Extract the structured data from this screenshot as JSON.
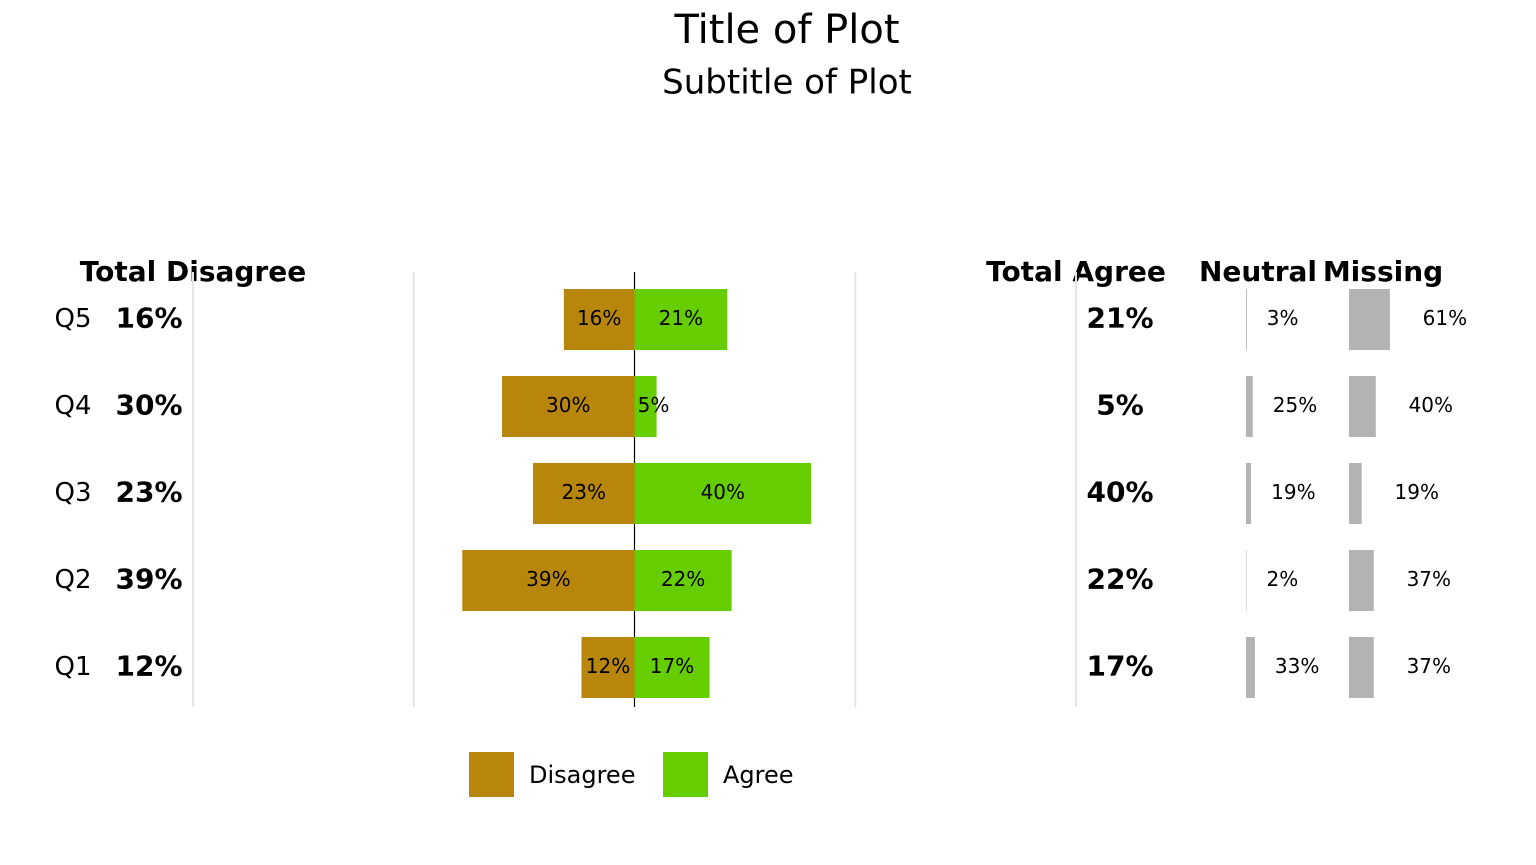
{
  "chart_data": {
    "type": "diverging_bar",
    "title": "Title of Plot",
    "subtitle": "Subtitle of Plot",
    "categories": [
      "Q5",
      "Q4",
      "Q3",
      "Q2",
      "Q1"
    ],
    "series": [
      {
        "name": "Disagree",
        "color": "#b8860b",
        "values": [
          16,
          30,
          23,
          39,
          12
        ],
        "value_labels": [
          "16%",
          "30%",
          "23%",
          "39%",
          "12%"
        ]
      },
      {
        "name": "Agree",
        "color": "#66cd00",
        "values": [
          21,
          5,
          40,
          22,
          17
        ],
        "value_labels": [
          "21%",
          "5%",
          "40%",
          "22%",
          "17%"
        ]
      }
    ],
    "total_disagree_header": "Total Disagree",
    "total_agree_header": "Total Agree",
    "xlim": [
      -100,
      100
    ],
    "xticks": [
      -100,
      -50,
      0,
      50,
      100
    ],
    "grid": true,
    "neutral": {
      "header": "Neutral",
      "color": "#b3b3b3",
      "xlim": [
        0,
        100
      ],
      "values": [
        3,
        25,
        19,
        2,
        33
      ],
      "value_labels": [
        "3%",
        "25%",
        "19%",
        "2%",
        "33%"
      ]
    },
    "missing": {
      "header": "Missing",
      "color": "#b3b3b3",
      "xlim": [
        0,
        100
      ],
      "values": [
        61,
        40,
        19,
        37,
        37
      ],
      "value_labels": [
        "61%",
        "40%",
        "19%",
        "37%",
        "37%"
      ]
    },
    "legend_position": "bottom"
  }
}
